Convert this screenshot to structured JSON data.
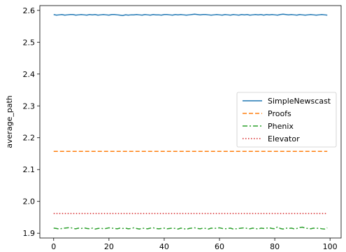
{
  "chart_data": {
    "type": "line",
    "title": "",
    "xlabel": "",
    "ylabel": "average_path",
    "xlim": [
      -5,
      104
    ],
    "ylim": [
      1.885,
      2.615
    ],
    "xticks": [
      0,
      20,
      40,
      60,
      80,
      100
    ],
    "yticks": [
      1.9,
      2.0,
      2.1,
      2.2,
      2.3,
      2.4,
      2.5,
      2.6
    ],
    "ytick_labels": [
      "1.9",
      "2.0",
      "2.1",
      "2.2",
      "2.3",
      "2.4",
      "2.5",
      "2.6"
    ],
    "grid": false,
    "legend_position": "center-right",
    "series": [
      {
        "name": "SimpleNewscast",
        "color": "#1f77b4",
        "style": "solid",
        "base": 2.586,
        "noise": [
          0.001,
          -0.001,
          0.0,
          0.001,
          -0.001,
          0.0,
          0.001,
          0.001,
          -0.001,
          0.0,
          0.001,
          0.0,
          -0.001,
          0.001,
          0.0,
          0.001,
          -0.001,
          0.0,
          0.001,
          0.0,
          -0.001,
          0.001,
          0.001,
          0.0,
          -0.001,
          -0.002,
          0.0,
          -0.001,
          0.0,
          0.0,
          0.001,
          0.0,
          -0.001,
          0.001,
          0.0,
          -0.001,
          0.001,
          0.0,
          0.0,
          -0.001,
          0.001,
          0.001,
          0.0,
          -0.001,
          0.001,
          0.0,
          0.001,
          0.0,
          -0.001,
          0.0,
          0.001,
          0.002,
          0.001,
          0.0,
          0.001,
          0.001,
          0.0,
          -0.001,
          0.0,
          0.001,
          0.0,
          -0.001,
          0.001,
          0.0,
          -0.001,
          0.001,
          0.0,
          -0.001,
          0.001,
          0.0,
          0.001,
          -0.001,
          0.0,
          0.001,
          0.0,
          0.001,
          -0.001,
          0.001,
          0.0,
          0.001,
          0.0,
          -0.001,
          0.001,
          0.002,
          0.001,
          0.0,
          0.001,
          0.0,
          -0.001,
          0.001,
          0.0,
          -0.001,
          0.0,
          0.001,
          0.0,
          -0.001,
          0.0,
          0.001,
          0.0,
          -0.001
        ]
      },
      {
        "name": "Proofs",
        "color": "#ff7f0e",
        "style": "dashed",
        "base": 2.157,
        "noise": []
      },
      {
        "name": "Phenix",
        "color": "#2ca02c",
        "style": "dashdot",
        "base": 1.915,
        "noise": [
          0.001,
          0.0,
          -0.002,
          0.0,
          0.001,
          0.002,
          0.003,
          0.0,
          -0.001,
          0.001,
          0.0,
          0.002,
          0.0,
          -0.001,
          0.001,
          -0.002,
          0.0,
          0.001,
          -0.001,
          0.0,
          0.002,
          0.001,
          0.0,
          -0.001,
          0.001,
          0.0,
          0.001,
          -0.001,
          0.0,
          0.002,
          0.0,
          -0.002,
          0.001,
          0.0,
          -0.001,
          0.001,
          0.002,
          0.0,
          -0.001,
          0.0,
          0.001,
          -0.001,
          0.0,
          0.001,
          0.0,
          -0.002,
          0.001,
          0.0,
          -0.003,
          0.0,
          0.001,
          0.002,
          0.0,
          -0.001,
          0.001,
          0.0,
          -0.002,
          0.001,
          0.0,
          0.001,
          0.002,
          0.0,
          -0.001,
          0.0,
          0.001,
          -0.002,
          -0.001,
          0.0,
          0.001,
          0.002,
          0.0,
          -0.001,
          0.001,
          0.0,
          -0.002,
          0.001,
          0.0,
          0.001,
          0.002,
          0.0,
          -0.001,
          0.005,
          0.0,
          -0.002,
          0.001,
          0.0,
          0.001,
          -0.001,
          0.0,
          0.003,
          0.004,
          0.001,
          0.0,
          -0.001,
          0.001,
          0.0,
          0.001,
          -0.001,
          -0.002,
          0.002
        ]
      },
      {
        "name": "Elevator",
        "color": "#d62728",
        "style": "dotted",
        "base": 1.962,
        "noise": []
      }
    ]
  }
}
